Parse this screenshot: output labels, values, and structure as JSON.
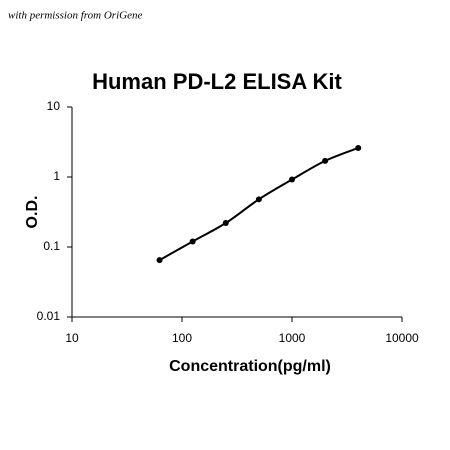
{
  "caption": "with permission from OriGene",
  "chart_data": {
    "type": "scatter",
    "title": "Human PD-L2 ELISA Kit",
    "x_label": "Concentration(pg/ml)",
    "y_label": "O.D.",
    "x": [
      62.5,
      125,
      250,
      500,
      1000,
      2000,
      4000
    ],
    "series": [
      {
        "color": "#000000",
        "values": [
          0.065,
          0.12,
          0.22,
          0.48,
          0.92,
          1.7,
          2.6
        ]
      }
    ],
    "xlim": [
      10,
      10000
    ],
    "ylim": [
      0.01,
      10
    ],
    "xticks": [
      10,
      100,
      1000,
      10000
    ],
    "yticks": [
      0.01,
      0.1,
      1,
      10
    ],
    "log_x": true,
    "log_y": true,
    "grid": false,
    "line": true
  }
}
